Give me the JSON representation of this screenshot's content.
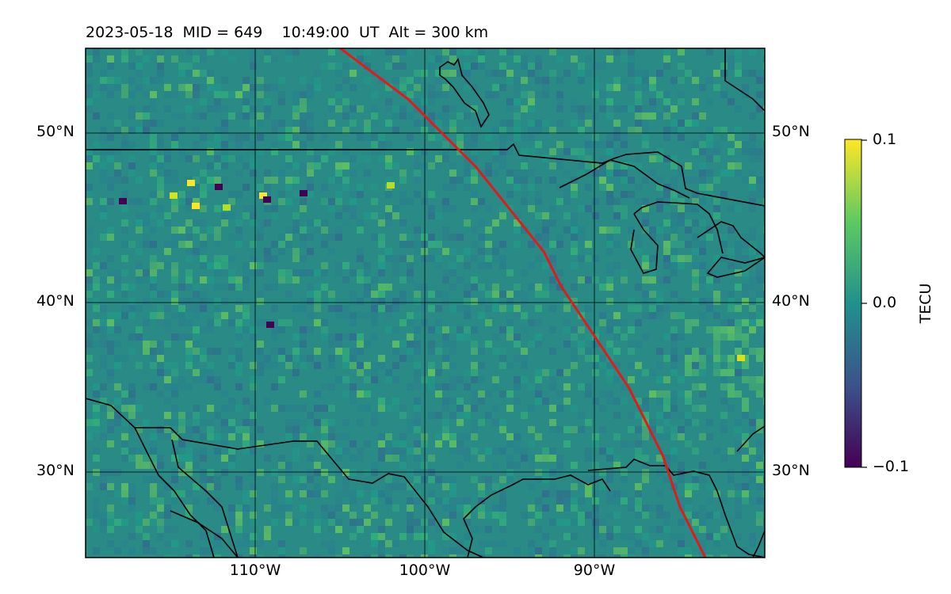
{
  "title": "2023-05-18  MID = 649    10:49:00  UT  Alt = 300 km",
  "map": {
    "lon_range": [
      -120,
      -80
    ],
    "lat_range": [
      25,
      55
    ],
    "lat_labels": [
      "50°N",
      "40°N",
      "30°N"
    ],
    "lon_labels": [
      "110°W",
      "100°W",
      "90°W"
    ]
  },
  "colorbar": {
    "label": "TECU",
    "min": -0.1,
    "max": 0.1,
    "tick_labels": [
      "0.1",
      "0.0",
      "−0.1"
    ],
    "colormap": "viridis"
  },
  "colors": {
    "background_field": "#2a8a86",
    "terminator": "#e11a1a",
    "coastline": "#000000",
    "gridline": "#000000"
  },
  "terminator_line": {
    "points": [
      [
        -105,
        55
      ],
      [
        -103,
        53.5
      ],
      [
        -101,
        52
      ],
      [
        -99,
        50
      ],
      [
        -97,
        48
      ],
      [
        -95,
        45.5
      ],
      [
        -93,
        43
      ],
      [
        -92,
        41
      ],
      [
        -90,
        38
      ],
      [
        -88,
        35
      ],
      [
        -87,
        33
      ],
      [
        -86,
        31
      ],
      [
        -85,
        28
      ],
      [
        -84,
        26
      ],
      [
        -83.5,
        25
      ]
    ]
  }
}
